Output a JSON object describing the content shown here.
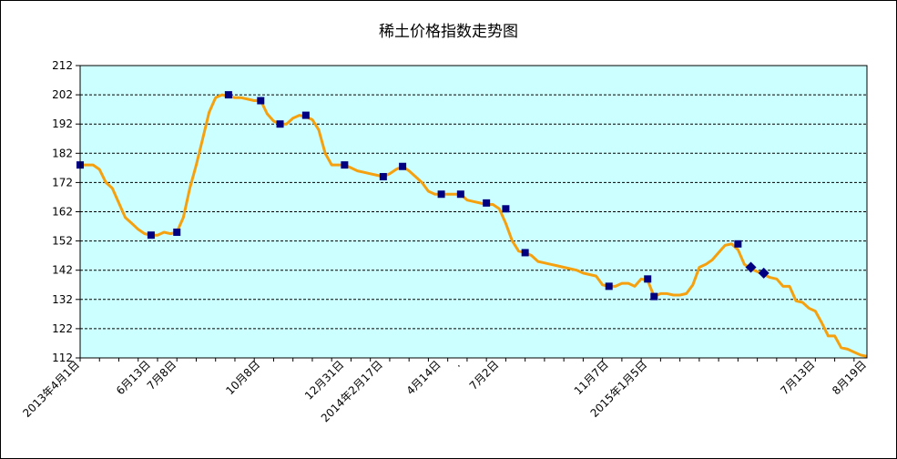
{
  "chart_data": {
    "type": "line",
    "title": "稀土价格指数走势图",
    "xlabel": "",
    "ylabel": "",
    "ylim": [
      112,
      212
    ],
    "yticks": [
      112,
      122,
      132,
      142,
      152,
      162,
      172,
      182,
      192,
      202,
      212
    ],
    "grid": true,
    "legend": "none",
    "colors": {
      "plot_bg": "#ccffff",
      "line": "#f5a00f",
      "marker": "#000080",
      "grid": "#000000"
    },
    "x_tick_labels": [
      {
        "i": 0,
        "label": "2013年4月1日"
      },
      {
        "i": 11,
        "label": "6月13日"
      },
      {
        "i": 15,
        "label": "7月8日"
      },
      {
        "i": 28,
        "label": "10月8日"
      },
      {
        "i": 41,
        "label": "12月31日"
      },
      {
        "i": 47,
        "label": "2014年2月17日"
      },
      {
        "i": 56,
        "label": "4月14日"
      },
      {
        "i": 59,
        "label": "."
      },
      {
        "i": 65,
        "label": "7月2日"
      },
      {
        "i": 82,
        "label": "11月7日"
      },
      {
        "i": 88,
        "label": "2015年1月5日"
      },
      {
        "i": 114,
        "label": "7月13日"
      },
      {
        "i": 122,
        "label": "8月19日"
      }
    ],
    "n_points": 123,
    "series": [
      {
        "points": [
          [
            0,
            178
          ],
          [
            1,
            178
          ],
          [
            2,
            178
          ],
          [
            3,
            176.5
          ],
          [
            4,
            172
          ],
          [
            5,
            170
          ],
          [
            6,
            165
          ],
          [
            7,
            160
          ],
          [
            8,
            158
          ],
          [
            9,
            156
          ],
          [
            10,
            154.5
          ],
          [
            11,
            154
          ],
          [
            12,
            154
          ],
          [
            13,
            155
          ],
          [
            14,
            154.5
          ],
          [
            15,
            155
          ],
          [
            16,
            160
          ],
          [
            17,
            170
          ],
          [
            18,
            178
          ],
          [
            19,
            187
          ],
          [
            20,
            196
          ],
          [
            21,
            201
          ],
          [
            22,
            202
          ],
          [
            23,
            201.5
          ],
          [
            24,
            201
          ],
          [
            25,
            201
          ],
          [
            26,
            200.5
          ],
          [
            27,
            200
          ],
          [
            28,
            200
          ],
          [
            29,
            195.5
          ],
          [
            30,
            193
          ],
          [
            31,
            192
          ],
          [
            32,
            192
          ],
          [
            33,
            194
          ],
          [
            34,
            195
          ],
          [
            35,
            194.5
          ],
          [
            36,
            193.5
          ],
          [
            37,
            190
          ],
          [
            38,
            182
          ],
          [
            39,
            178
          ],
          [
            40,
            178
          ],
          [
            41,
            178
          ],
          [
            42,
            177
          ],
          [
            43,
            176
          ],
          [
            44,
            175.5
          ],
          [
            45,
            175
          ],
          [
            46,
            174.5
          ],
          [
            47,
            174
          ],
          [
            48,
            175
          ],
          [
            49,
            176.5
          ],
          [
            50,
            177.5
          ],
          [
            51,
            176
          ],
          [
            52,
            174
          ],
          [
            53,
            172
          ],
          [
            54,
            169
          ],
          [
            55,
            168
          ],
          [
            56,
            168
          ],
          [
            57,
            168
          ],
          [
            58,
            168
          ],
          [
            59,
            168
          ],
          [
            60,
            166
          ],
          [
            61,
            165.5
          ],
          [
            62,
            165
          ],
          [
            63,
            164.5
          ],
          [
            64,
            164.5
          ],
          [
            65,
            163
          ],
          [
            66,
            158
          ],
          [
            67,
            152
          ],
          [
            68,
            148.5
          ],
          [
            69,
            148
          ],
          [
            70,
            147
          ],
          [
            71,
            145
          ],
          [
            72,
            144.5
          ],
          [
            73,
            144
          ],
          [
            74,
            143.5
          ],
          [
            75,
            143
          ],
          [
            76,
            142.5
          ],
          [
            77,
            142
          ],
          [
            78,
            141
          ],
          [
            79,
            140.5
          ],
          [
            80,
            140
          ],
          [
            81,
            137
          ],
          [
            82,
            136.5
          ],
          [
            83,
            136.5
          ],
          [
            84,
            137.5
          ],
          [
            85,
            137.5
          ],
          [
            86,
            136.5
          ],
          [
            87,
            139
          ],
          [
            88,
            138.5
          ],
          [
            89,
            133
          ],
          [
            90,
            134
          ],
          [
            91,
            134
          ],
          [
            92,
            133.5
          ],
          [
            93,
            133.5
          ],
          [
            94,
            134
          ],
          [
            95,
            137
          ],
          [
            96,
            143
          ],
          [
            97,
            144
          ],
          [
            98,
            145.5
          ],
          [
            99,
            148
          ],
          [
            100,
            150.5
          ],
          [
            101,
            151
          ],
          [
            102,
            149
          ],
          [
            103,
            144
          ],
          [
            104,
            142.5
          ],
          [
            105,
            141.5
          ],
          [
            106,
            140.5
          ],
          [
            107,
            139.5
          ],
          [
            108,
            139
          ],
          [
            109,
            136.5
          ],
          [
            110,
            136.5
          ],
          [
            111,
            131.5
          ],
          [
            112,
            131
          ],
          [
            113,
            129
          ],
          [
            114,
            128
          ],
          [
            115,
            124
          ],
          [
            116,
            119.5
          ],
          [
            117,
            119.5
          ],
          [
            118,
            115.5
          ],
          [
            119,
            115
          ],
          [
            120,
            114
          ],
          [
            121,
            113
          ],
          [
            122,
            112.5
          ]
        ],
        "markers_square": [
          [
            0,
            178
          ],
          [
            11,
            154
          ],
          [
            15,
            155
          ],
          [
            23,
            202
          ],
          [
            28,
            200
          ],
          [
            31,
            192
          ],
          [
            35,
            195
          ],
          [
            41,
            178
          ],
          [
            47,
            174
          ],
          [
            50,
            177.5
          ],
          [
            56,
            168
          ],
          [
            59,
            168
          ],
          [
            63,
            165
          ],
          [
            66,
            163
          ],
          [
            69,
            148
          ],
          [
            82,
            136.5
          ],
          [
            88,
            139
          ],
          [
            89,
            133
          ],
          [
            102,
            151
          ]
        ],
        "markers_diamond": [
          [
            104,
            143
          ],
          [
            106,
            141
          ]
        ]
      }
    ]
  }
}
